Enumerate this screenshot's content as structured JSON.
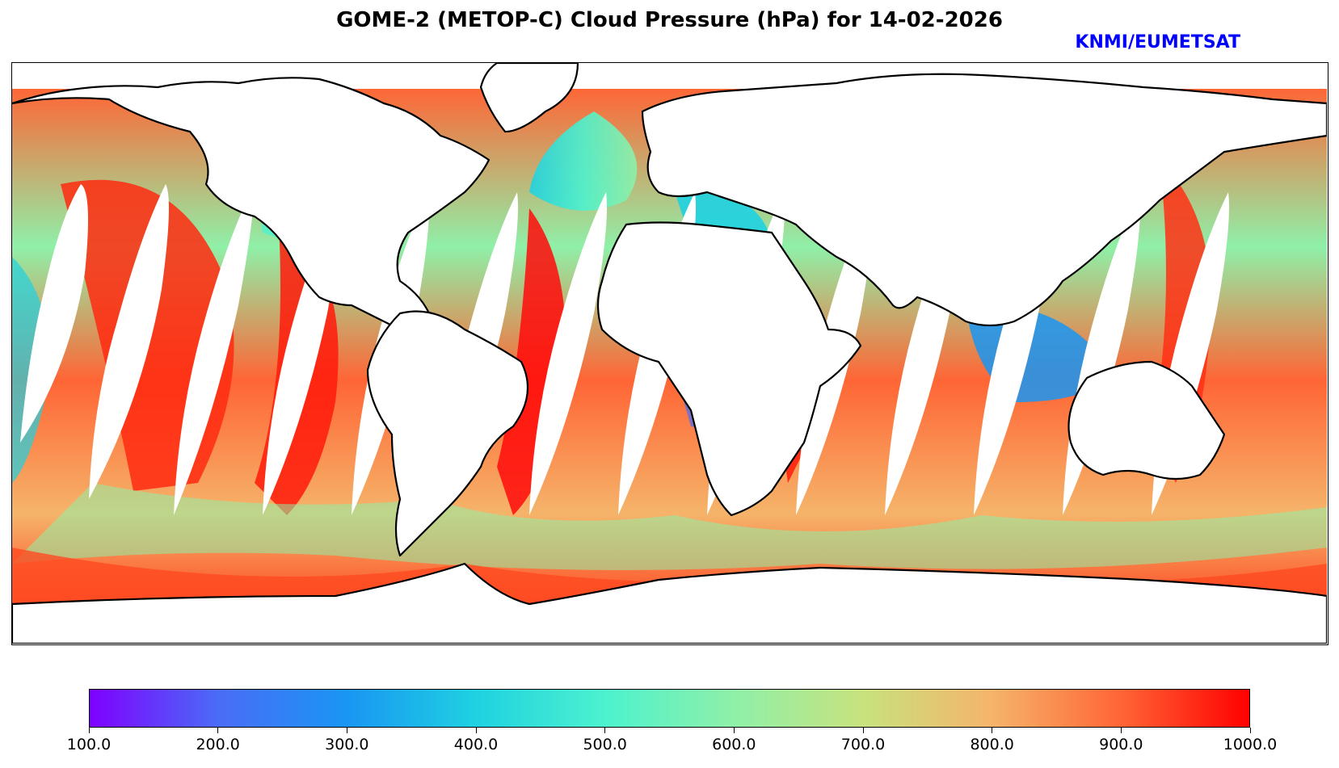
{
  "title": "GOME-2 (METOP-C) Cloud Pressure (hPa) for 14-02-2026",
  "credit": "KNMI/EUMETSAT",
  "colorbar": {
    "min": 100.0,
    "max": 1000.0,
    "tick_labels": [
      "100.0",
      "200.0",
      "300.0",
      "400.0",
      "500.0",
      "600.0",
      "700.0",
      "800.0",
      "900.0",
      "1000.0"
    ],
    "colors": [
      "#7f00ff",
      "#4a6cf7",
      "#1996f3",
      "#1fd1e1",
      "#4cf2ce",
      "#8ff0a8",
      "#c8e27e",
      "#f5b46a",
      "#ff6535",
      "#ff0000"
    ]
  },
  "colors": {
    "credit": "#0000ff",
    "land": "#ffffff",
    "coastline": "#000000"
  }
}
